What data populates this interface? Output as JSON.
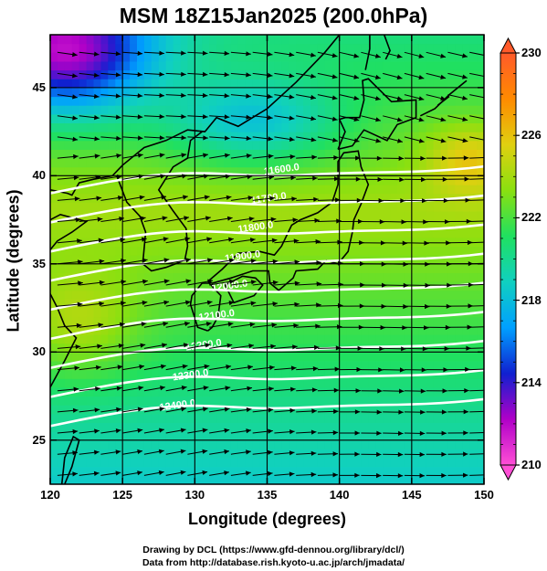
{
  "title": "MSM 18Z15Jan2025 (200.0hPa)",
  "map": {
    "xlabel": "Longitude (degrees)",
    "ylabel": "Latitude  (degrees)",
    "lon_range": [
      120,
      150
    ],
    "lat_range": [
      22.5,
      48
    ],
    "lon_ticks": [
      "120",
      "125",
      "130",
      "135",
      "140",
      "145",
      "150"
    ],
    "lat_ticks": [
      "25",
      "30",
      "35",
      "40",
      "45"
    ],
    "grid": true
  },
  "colorbar": {
    "range": [
      210,
      230
    ],
    "ticks": [
      "210",
      "214",
      "218",
      "222",
      "226",
      "230"
    ],
    "colors": [
      "#ff4fd6",
      "#b000c8",
      "#1020d0",
      "#00a0ff",
      "#10d0c0",
      "#20e060",
      "#8ae010",
      "#e0d010",
      "#ff8a00",
      "#ff5a2a"
    ]
  },
  "contours": [
    {
      "label": "11600.0"
    },
    {
      "label": "11700.0"
    },
    {
      "label": "11800.0"
    },
    {
      "label": "11900.0"
    },
    {
      "label": "12000.0"
    },
    {
      "label": "12100.0"
    },
    {
      "label": "12200.0"
    },
    {
      "label": "12300.0"
    },
    {
      "label": "12400.0"
    }
  ],
  "credits": {
    "line1": "Drawing by DCL (https://www.gfd-dennou.org/library/dcl/)",
    "line2": "Data from http://database.rish.kyoto-u.ac.jp/arch/jmadata/"
  }
}
